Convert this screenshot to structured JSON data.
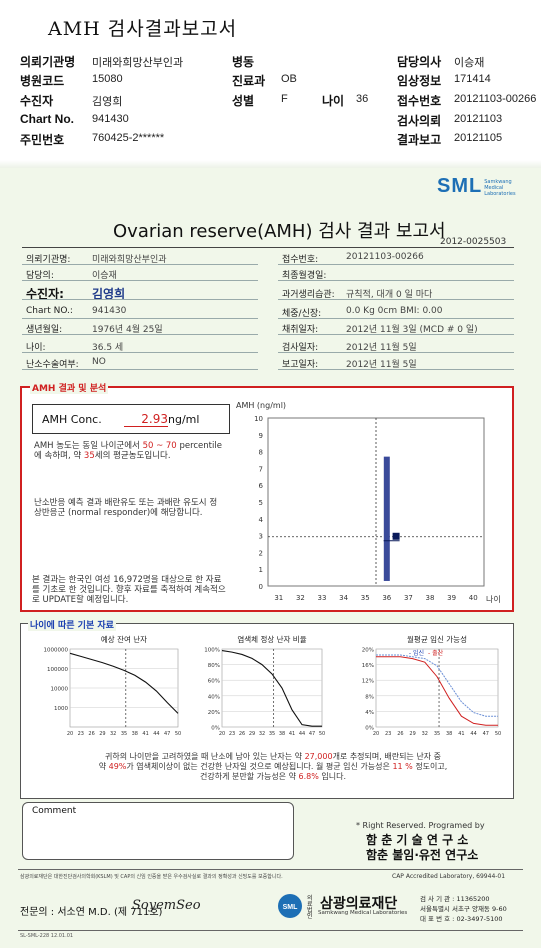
{
  "header": {
    "title": "AMH 검사결과보고서",
    "rows": [
      {
        "l1": "의뢰기관명",
        "v1": "미래와희망산부인과",
        "l2": "병동",
        "v2": "",
        "l3": "",
        "v3": "",
        "l4": "담당의사",
        "v4": "이승재"
      },
      {
        "l1": "병원코드",
        "v1": "15080",
        "l2": "진료과",
        "v2": "OB",
        "l3": "",
        "v3": "",
        "l4": "임상정보",
        "v4": "171414"
      },
      {
        "l1": "수진자",
        "v1": "김영희",
        "l2": "성별",
        "v2": "F",
        "l3": "나이",
        "v3": "36",
        "l4": "접수번호",
        "v4": "20121103-00266"
      },
      {
        "l1": "Chart No.",
        "v1": "941430",
        "l2": "",
        "v2": "",
        "l3": "",
        "v3": "",
        "l4": "검사의뢰",
        "v4": "20121103"
      },
      {
        "l1": "주민번호",
        "v1": "760425-2******",
        "l2": "",
        "v2": "",
        "l3": "",
        "v3": "",
        "l4": "결과보고",
        "v4": "20121105"
      }
    ]
  },
  "logo": {
    "text": "SML",
    "sub1": "Samkwang",
    "sub2": "Medical",
    "sub3": "Laboratories"
  },
  "report": {
    "title": "Ovarian reserve(AMH) 검사 결과 보고서",
    "number": "2012-0025503",
    "left_fields": [
      {
        "label": "의뢰기관명:",
        "value": "미래와희망산부인과"
      },
      {
        "label": "담당의:",
        "value": "이승재"
      },
      {
        "label": "수진자:",
        "value": "김영희"
      },
      {
        "label": "Chart NO.:",
        "value": "941430"
      },
      {
        "label": "생년월일:",
        "value": "1976년 4월 25일"
      },
      {
        "label": "나이:",
        "value": "36.5 세"
      },
      {
        "label": "난소수술여부:",
        "value": "NO"
      }
    ],
    "right_fields": [
      {
        "label": "접수번호:",
        "value": "20121103-00266"
      },
      {
        "label": "최종월경일:",
        "value": ""
      },
      {
        "label": "과거생리습관:",
        "value": "규칙적, 대개    0 일 마다"
      },
      {
        "label": "체중/신장:",
        "value": "0.0 Kg        0cm   BMI:     0.00"
      },
      {
        "label": "채취일자:",
        "value": "2012년 11월 3일   (MCD #  0 일)"
      },
      {
        "label": "검사일자:",
        "value": "2012년 11월 5일"
      },
      {
        "label": "보고일자:",
        "value": "2012년 11월 5일"
      }
    ]
  },
  "amh": {
    "section_title": "AMH 결과 및 분석",
    "conc_label": "AMH Conc.",
    "conc_value": "2.93",
    "conc_unit": "ng/ml",
    "p1_a": "AMH 농도는 동일 나이군에서",
    "p1_b": "50 ~  70",
    "p1_c": "percentile에 속하며, 약",
    "p1_d": "35",
    "p1_e": "세의 평균농도입니다.",
    "p2": "난소반응 예측 결과 배란유도 또는 과배란 유도시 정상반응군 (normal responder)에 해당합니다.",
    "p3": "본 결과는 한국인 여성 16,972명을 대상으로 한 자료를 기초로 한 것입니다. 향후 자료를 축적하여 계속적으로 UPDATE할 예정입니다.",
    "chart_title": "AMH (ng/ml)",
    "chart_xlabel": "나이"
  },
  "chart_data": [
    {
      "type": "bar",
      "title": "AMH (ng/ml)",
      "xlabel": "나이",
      "ylabel": "AMH (ng/ml)",
      "x_ticks": [
        31,
        32,
        33,
        34,
        35,
        36,
        37,
        38,
        39,
        40
      ],
      "y_ticks": [
        0,
        1,
        2,
        3,
        4,
        5,
        6,
        7,
        8,
        9,
        10
      ],
      "ylim": [
        0,
        10
      ],
      "xlim": [
        30.5,
        40.5
      ],
      "range_bar": {
        "x": 36,
        "low": 0.3,
        "high": 7.7
      },
      "marker": {
        "age": 36.5,
        "value": 2.93
      },
      "ref_lines": {
        "age": 35.5,
        "value": 2.93
      }
    },
    {
      "type": "line",
      "title": "예상 잔여 난자",
      "y_ticks": [
        "1000000",
        "100000",
        "10000",
        "1000"
      ],
      "x_ticks": [
        "20",
        "23",
        "26",
        "29",
        "32",
        "35",
        "38",
        "41",
        "44",
        "47",
        "50"
      ],
      "log_scale": true,
      "x": [
        20,
        23,
        26,
        29,
        32,
        35,
        38,
        41,
        44,
        47,
        50
      ],
      "y": [
        600000,
        420000,
        290000,
        200000,
        130000,
        80000,
        45000,
        20000,
        7000,
        1800,
        500
      ]
    },
    {
      "type": "line",
      "title": "염색체 정상 난자 비율",
      "y_ticks": [
        "100%",
        "80%",
        "60%",
        "40%",
        "20%",
        "0%"
      ],
      "x_ticks": [
        "20",
        "23",
        "26",
        "29",
        "32",
        "35",
        "38",
        "41",
        "44",
        "47",
        "50"
      ],
      "x": [
        20,
        23,
        26,
        29,
        32,
        35,
        38,
        41,
        44,
        47,
        50
      ],
      "y": [
        98,
        96,
        93,
        88,
        80,
        68,
        50,
        22,
        3,
        1,
        1
      ]
    },
    {
      "type": "line",
      "title": "월평균 임신 가능성",
      "legend": [
        "임신",
        "출산"
      ],
      "y_ticks": [
        "20%",
        "16%",
        "12%",
        "8%",
        "4%",
        "0%"
      ],
      "x_ticks": [
        "20",
        "23",
        "26",
        "29",
        "32",
        "35",
        "38",
        "41",
        "44",
        "47",
        "50"
      ],
      "series": [
        {
          "name": "임신",
          "x": [
            20,
            23,
            26,
            29,
            32,
            35,
            38,
            41,
            44,
            47,
            50
          ],
          "y": [
            20,
            20,
            20,
            19.5,
            19,
            17,
            12,
            7,
            4,
            3,
            3
          ]
        },
        {
          "name": "출산",
          "x": [
            20,
            23,
            26,
            29,
            32,
            35,
            38,
            41,
            44,
            47,
            50
          ],
          "y": [
            19.5,
            19.5,
            19.5,
            19,
            18,
            14,
            8,
            3,
            1,
            0.5,
            0.5
          ]
        }
      ]
    }
  ],
  "age_section": {
    "title": "나이에 따른 기본 자료",
    "c1_title": "예상 잔여 난자",
    "c2_title": "염색체 정상 난자 비율",
    "c3_title": "월평균 임신 가능성",
    "c3_legend_a": "- 임신",
    "c3_legend_b": "- 출산",
    "summary_1": "귀하의 나이만을 고려하였을 때 난소에 남아 있는 난자는 약",
    "summary_num1": "27,000",
    "summary_2": "개로 추정되며, 배란되는 난자 중",
    "summary_3": "약",
    "summary_num2": "49%",
    "summary_4": "가 염색체이상이 없는 건강한 난자일 것으로 예상됩니다. 월 평균 임신 가능성은",
    "summary_num3": "11 %",
    "summary_5": "정도이고,",
    "summary_6": "건강하게 분만할 가능성은 약",
    "summary_num4": "6.8%",
    "summary_7": "입니다."
  },
  "comment": {
    "label": "Comment"
  },
  "rights": {
    "line1": "* Right Reserved. Programed by",
    "line2": "함 춘  기 술  연 구 소",
    "line3": "함춘 불임·유전 연구소"
  },
  "footer": {
    "accredit_left": "삼광의료재단은 대한진단검사의학회(KSLM) 및 CAP의 신임 인증을 받은 우수검사실로 결과의 정확성과 신빙도를 보증합니다.",
    "cap": "CAP  Accredited  Laboratory,  69944-01",
    "doctor": "전문의 : 서소연 M.D. (제 711호)",
    "signature": "SoyemSeo",
    "foundation_prefix": "의료법인",
    "foundation": "삼광의료재단",
    "foundation_en": "Samkwang Medical Laboratories",
    "phone1": "검 사 기 관 : 11365200",
    "addr": "서울특별시 서초구 양재동 9-60",
    "phone2": "대 표 번 호 : 02-3497-5100",
    "form_no": "SL-SML-228 12.01.01"
  }
}
